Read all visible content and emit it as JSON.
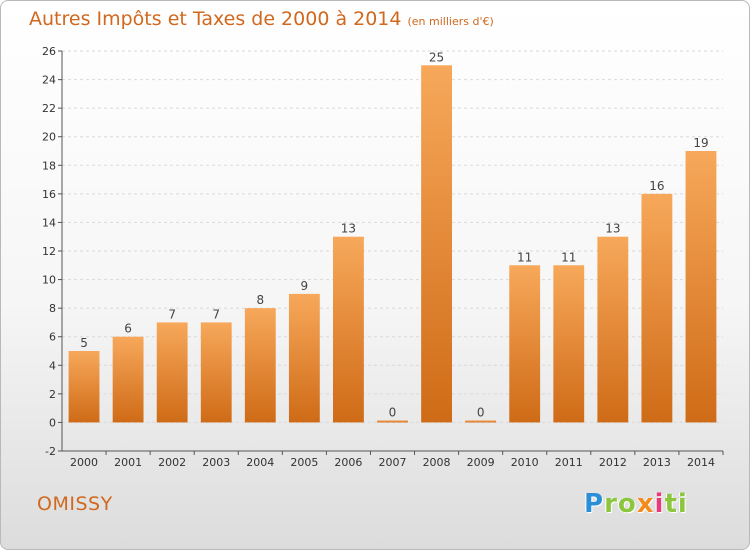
{
  "header": {
    "title": "Autres Impôts et Taxes de 2000 à 2014",
    "subtitle": "(en milliers d'€)"
  },
  "footer": {
    "commune": "OMISSY",
    "logo_parts": [
      "P",
      "ro",
      "x",
      "i",
      "ti"
    ]
  },
  "colors": {
    "accent": "#d0681e",
    "bar_top": "#f7a85a",
    "bar_bottom": "#cf6b17",
    "grid": "#d9d9d9",
    "logo": [
      "#2a8fd6",
      "#8cc63f",
      "#f28c1f",
      "#e63b7a",
      "#8cc63f"
    ]
  },
  "chart_data": {
    "type": "bar",
    "title": "Autres Impôts et Taxes de 2000 à 2014",
    "subtitle": "(en milliers d'€)",
    "categories": [
      "2000",
      "2001",
      "2002",
      "2003",
      "2004",
      "2005",
      "2006",
      "2007",
      "2008",
      "2009",
      "2010",
      "2011",
      "2012",
      "2013",
      "2014"
    ],
    "values": [
      5,
      6,
      7,
      7,
      8,
      9,
      13,
      0,
      25,
      0,
      11,
      11,
      13,
      16,
      19
    ],
    "ylim": [
      -2,
      26
    ],
    "yticks": [
      -2,
      0,
      2,
      4,
      6,
      8,
      10,
      12,
      14,
      16,
      18,
      20,
      22,
      24,
      26
    ],
    "grid": true,
    "xlabel": "",
    "ylabel": ""
  }
}
